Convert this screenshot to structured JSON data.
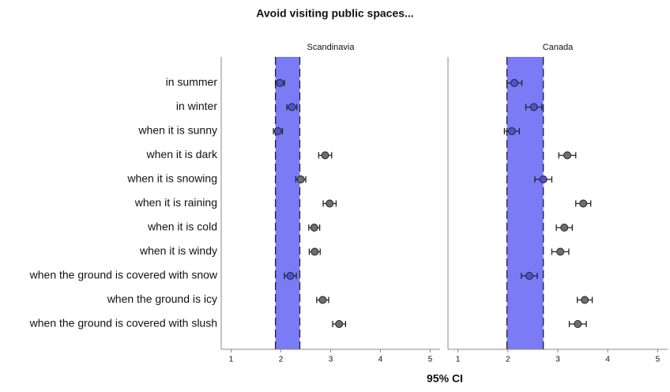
{
  "chart_data": {
    "type": "errorbar",
    "title": "Avoid visiting public spaces...",
    "xlabel": "95% CI",
    "categories": [
      "in summer",
      "in winter",
      "when it is sunny",
      "when it is dark",
      "when it is snowing",
      "when it is raining",
      "when it is cold",
      "when it is windy",
      "when the ground is covered with snow",
      "when the ground is icy",
      "when the ground is covered with slush"
    ],
    "xlim": [
      0.8,
      5.2
    ],
    "xticks": [
      1,
      2,
      3,
      4,
      5
    ],
    "band_color": "#7b7bf5",
    "color": "#6e6e6e",
    "highlight_color": "#5050d0",
    "panels": [
      {
        "name": "Scandinavia",
        "band": [
          1.89,
          2.38
        ],
        "values": [
          1.98,
          2.22,
          1.94,
          2.89,
          2.4,
          2.98,
          2.67,
          2.68,
          2.19,
          2.84,
          3.17
        ],
        "errors": [
          0.09,
          0.1,
          0.09,
          0.13,
          0.1,
          0.13,
          0.11,
          0.11,
          0.12,
          0.12,
          0.13
        ]
      },
      {
        "name": "Canada",
        "band": [
          1.98,
          2.71
        ],
        "values": [
          2.13,
          2.52,
          2.08,
          3.19,
          2.71,
          3.51,
          3.13,
          3.05,
          2.43,
          3.54,
          3.4
        ],
        "errors": [
          0.15,
          0.16,
          0.15,
          0.17,
          0.17,
          0.15,
          0.16,
          0.17,
          0.16,
          0.15,
          0.17
        ]
      }
    ]
  }
}
